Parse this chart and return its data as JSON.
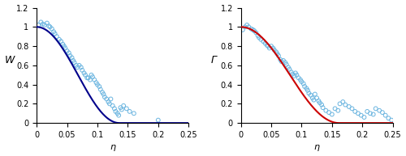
{
  "left": {
    "ylabel": "W",
    "xlabel": "η",
    "xlim": [
      0,
      0.25
    ],
    "ylim": [
      0,
      1.2
    ],
    "xticks": [
      0,
      0.05,
      0.1,
      0.15,
      0.2,
      0.25
    ],
    "yticks": [
      0,
      0.2,
      0.4,
      0.6,
      0.8,
      1.0,
      1.2
    ],
    "curve_color": "#00008B",
    "eta_max": 0.136,
    "scatter_x": [
      0.003,
      0.007,
      0.01,
      0.013,
      0.017,
      0.02,
      0.022,
      0.025,
      0.028,
      0.03,
      0.033,
      0.037,
      0.04,
      0.043,
      0.045,
      0.047,
      0.05,
      0.053,
      0.055,
      0.058,
      0.06,
      0.062,
      0.065,
      0.067,
      0.07,
      0.073,
      0.075,
      0.078,
      0.08,
      0.083,
      0.085,
      0.088,
      0.09,
      0.092,
      0.095,
      0.098,
      0.1,
      0.103,
      0.105,
      0.108,
      0.11,
      0.112,
      0.115,
      0.118,
      0.12,
      0.122,
      0.125,
      0.128,
      0.13,
      0.133,
      0.135,
      0.138,
      0.14,
      0.143,
      0.148,
      0.153,
      0.16,
      0.2
    ],
    "scatter_y": [
      1.02,
      1.05,
      1.03,
      1.02,
      1.04,
      1.01,
      1.0,
      0.98,
      0.95,
      0.93,
      0.9,
      0.87,
      0.85,
      0.82,
      0.8,
      0.78,
      0.75,
      0.73,
      0.7,
      0.68,
      0.65,
      0.63,
      0.6,
      0.58,
      0.6,
      0.58,
      0.55,
      0.52,
      0.5,
      0.47,
      0.47,
      0.45,
      0.5,
      0.48,
      0.45,
      0.42,
      0.4,
      0.38,
      0.35,
      0.32,
      0.3,
      0.27,
      0.25,
      0.22,
      0.2,
      0.25,
      0.18,
      0.15,
      0.12,
      0.1,
      0.08,
      0.16,
      0.14,
      0.18,
      0.15,
      0.12,
      0.1,
      0.03
    ]
  },
  "right": {
    "ylabel": "Γ",
    "xlabel": "η",
    "xlim": [
      0,
      0.25
    ],
    "ylim": [
      0,
      1.2
    ],
    "xticks": [
      0,
      0.05,
      0.1,
      0.15,
      0.2,
      0.25
    ],
    "yticks": [
      0,
      0.2,
      0.4,
      0.6,
      0.8,
      1.0,
      1.2
    ],
    "curve_color": "#CC0000",
    "eta_max": 0.1616,
    "scatter_x": [
      0.003,
      0.007,
      0.01,
      0.013,
      0.017,
      0.02,
      0.022,
      0.025,
      0.028,
      0.03,
      0.033,
      0.037,
      0.04,
      0.043,
      0.045,
      0.047,
      0.05,
      0.053,
      0.055,
      0.058,
      0.06,
      0.062,
      0.065,
      0.067,
      0.07,
      0.073,
      0.075,
      0.078,
      0.08,
      0.083,
      0.085,
      0.088,
      0.09,
      0.092,
      0.095,
      0.098,
      0.1,
      0.103,
      0.105,
      0.108,
      0.11,
      0.112,
      0.115,
      0.118,
      0.12,
      0.122,
      0.125,
      0.128,
      0.13,
      0.133,
      0.135,
      0.14,
      0.145,
      0.15,
      0.155,
      0.16,
      0.163,
      0.168,
      0.172,
      0.178,
      0.183,
      0.188,
      0.193,
      0.198,
      0.203,
      0.208,
      0.213,
      0.218,
      0.222,
      0.228,
      0.233,
      0.238,
      0.243,
      0.248
    ],
    "scatter_y": [
      0.97,
      1.0,
      1.02,
      1.0,
      0.98,
      0.97,
      0.96,
      0.94,
      0.91,
      0.89,
      0.87,
      0.85,
      0.83,
      0.81,
      0.8,
      0.78,
      0.8,
      0.78,
      0.76,
      0.74,
      0.72,
      0.7,
      0.66,
      0.64,
      0.65,
      0.63,
      0.61,
      0.58,
      0.56,
      0.53,
      0.51,
      0.49,
      0.52,
      0.5,
      0.47,
      0.45,
      0.43,
      0.41,
      0.38,
      0.36,
      0.34,
      0.31,
      0.29,
      0.26,
      0.24,
      0.3,
      0.26,
      0.23,
      0.21,
      0.19,
      0.16,
      0.13,
      0.11,
      0.09,
      0.15,
      0.13,
      0.2,
      0.22,
      0.19,
      0.17,
      0.15,
      0.12,
      0.1,
      0.08,
      0.06,
      0.12,
      0.1,
      0.09,
      0.15,
      0.13,
      0.11,
      0.08,
      0.05,
      0.03
    ]
  },
  "scatter_color": "#6BB5E0",
  "scatter_size": 12,
  "scatter_linewidth": 0.7,
  "fig_width": 5.0,
  "fig_height": 1.93
}
